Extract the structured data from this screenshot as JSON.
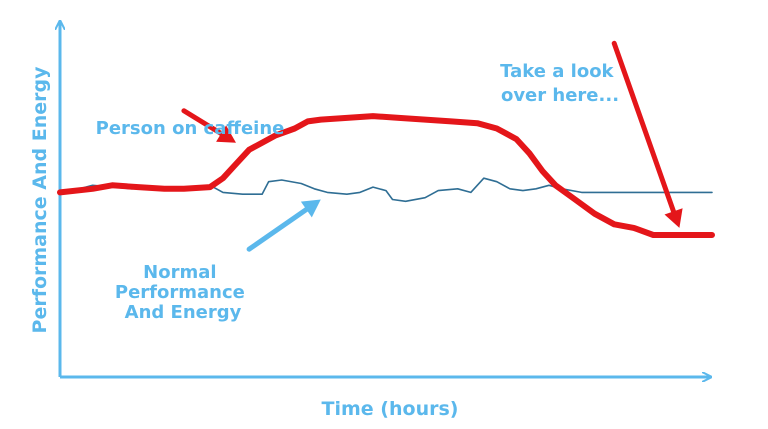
{
  "chart_data": {
    "type": "line",
    "title": "",
    "xlabel": "Time (hours)",
    "ylabel": "Performance And Energy",
    "xlim": [
      0,
      100
    ],
    "ylim": [
      0,
      100
    ],
    "grid": false,
    "legend": "none",
    "series": [
      {
        "name": "",
        "color": "#e4161a",
        "points": [
          [
            0,
            52
          ],
          [
            5,
            53
          ],
          [
            8,
            54
          ],
          [
            12,
            53.5
          ],
          [
            16,
            53
          ],
          [
            19,
            53
          ],
          [
            23,
            53.5
          ],
          [
            25,
            56
          ],
          [
            27,
            60
          ],
          [
            29,
            64
          ],
          [
            31,
            66
          ],
          [
            33,
            68
          ],
          [
            36,
            70
          ],
          [
            38,
            72
          ],
          [
            40,
            72.5
          ],
          [
            44,
            73
          ],
          [
            48,
            73.5
          ],
          [
            52,
            73
          ],
          [
            56,
            72.5
          ],
          [
            60,
            72
          ],
          [
            64,
            71.5
          ],
          [
            67,
            70
          ],
          [
            70,
            67
          ],
          [
            72,
            63
          ],
          [
            74,
            58
          ],
          [
            76,
            54
          ],
          [
            79,
            50
          ],
          [
            82,
            46
          ],
          [
            85,
            43
          ],
          [
            88,
            42
          ],
          [
            91,
            40
          ],
          [
            94,
            40
          ],
          [
            100,
            40
          ]
        ]
      },
      {
        "name": "",
        "color": "#2f6e94",
        "points": [
          [
            0,
            52
          ],
          [
            3,
            53
          ],
          [
            5,
            54
          ],
          [
            8,
            53.5
          ],
          [
            11,
            53
          ],
          [
            14,
            53.5
          ],
          [
            17,
            53.5
          ],
          [
            20,
            53
          ],
          [
            23,
            54
          ],
          [
            25,
            52
          ],
          [
            28,
            51.5
          ],
          [
            31,
            51.5
          ],
          [
            32,
            55
          ],
          [
            34,
            55.5
          ],
          [
            37,
            54.5
          ],
          [
            39,
            53
          ],
          [
            41,
            52
          ],
          [
            44,
            51.5
          ],
          [
            46,
            52
          ],
          [
            48,
            53.5
          ],
          [
            50,
            52.5
          ],
          [
            51,
            50
          ],
          [
            53,
            49.5
          ],
          [
            56,
            50.5
          ],
          [
            58,
            52.5
          ],
          [
            61,
            53
          ],
          [
            63,
            52
          ],
          [
            65,
            56
          ],
          [
            67,
            55
          ],
          [
            69,
            53
          ],
          [
            71,
            52.5
          ],
          [
            73,
            53
          ],
          [
            75,
            54
          ],
          [
            77,
            53
          ],
          [
            80,
            52
          ],
          [
            84,
            52
          ],
          [
            88,
            52
          ],
          [
            92,
            52
          ],
          [
            96,
            52
          ],
          [
            100,
            52
          ]
        ]
      }
    ],
    "annotations": [
      {
        "lines": [
          "Person on caffeine"
        ],
        "color": "#5bb8ec"
      },
      {
        "lines": [
          "Normal",
          "Performance",
          "And Energy"
        ],
        "color": "#5bb8ec"
      },
      {
        "lines": [
          "Take a look",
          "over here..."
        ],
        "color": "#5bb8ec"
      }
    ],
    "arrows": [
      {
        "color": "#e4161a",
        "from": [
          19,
          75
        ],
        "to": [
          27,
          66
        ]
      },
      {
        "color": "#5bb8ec",
        "from": [
          29,
          36
        ],
        "to": [
          40,
          50
        ]
      },
      {
        "color": "#e4161a",
        "from": [
          85,
          94
        ],
        "to": [
          95,
          42
        ]
      }
    ],
    "axis_color": "#5bb8ec"
  }
}
